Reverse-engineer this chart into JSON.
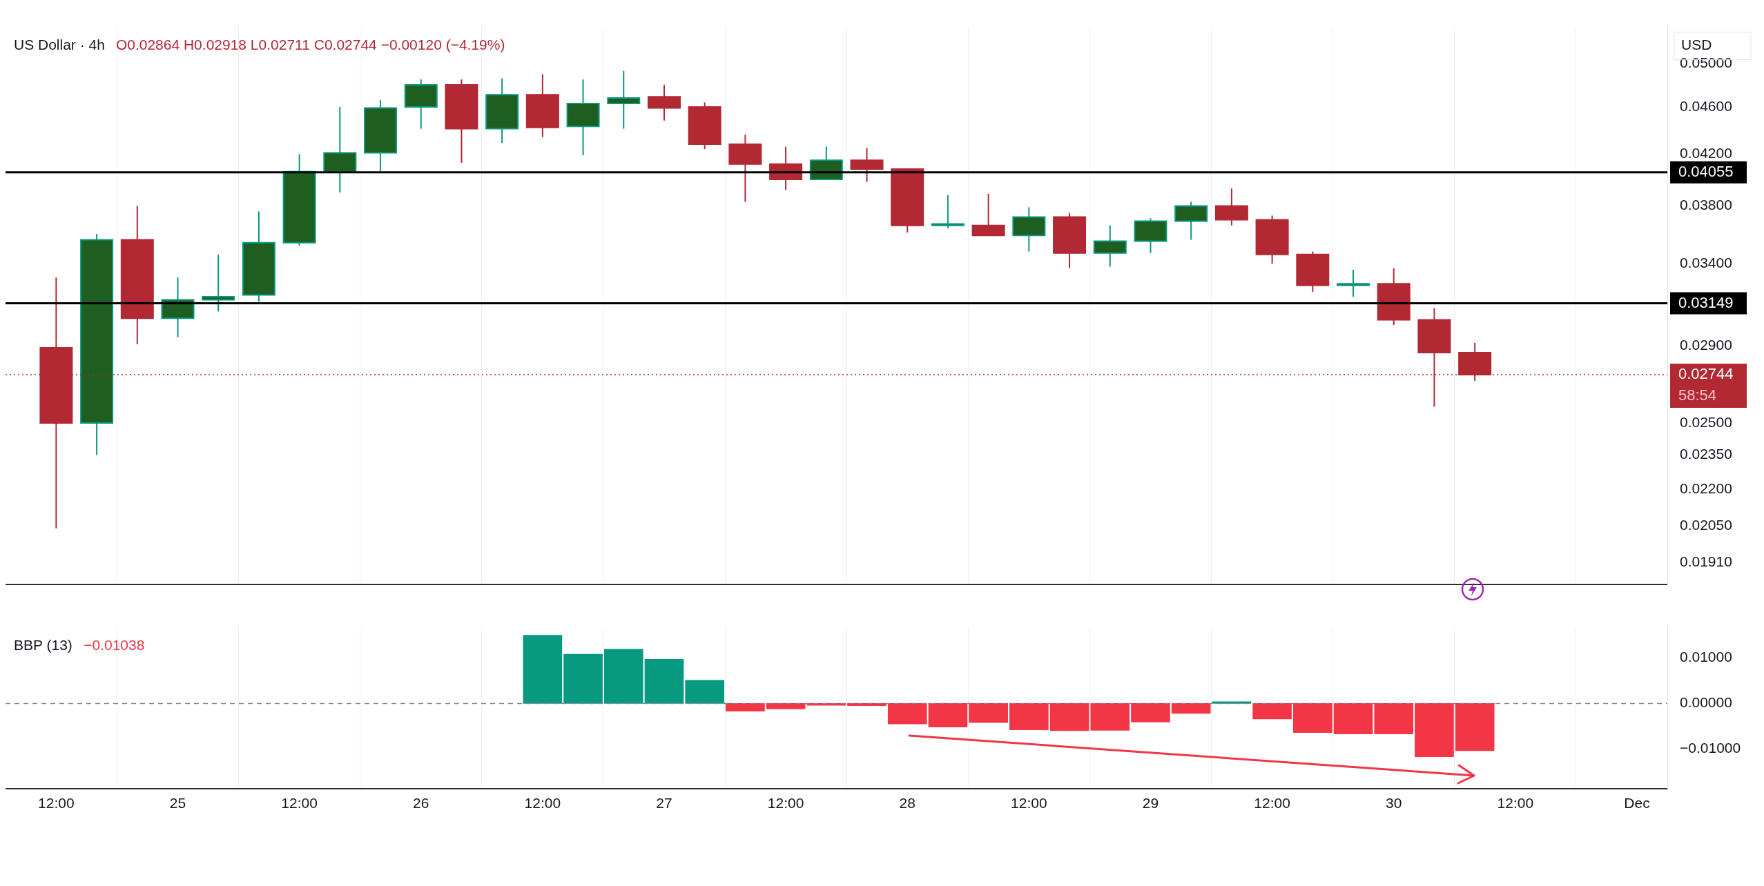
{
  "chart_data": [
    {
      "type": "candlestick",
      "title": "US Dollar · 4h",
      "subtitle": "O0.02864 H0.02918 L0.02711 C0.02744 −0.00120 (−4.19%)",
      "ylabel": "USD",
      "x": [
        "--11-24T12:00",
        "--11-24T16:00",
        "--11-24T20:00",
        "--11-25T00:00",
        "--11-25T04:00",
        "--11-25T08:00",
        "--11-25T12:00",
        "--11-25T16:00",
        "--11-25T20:00",
        "--11-26T00:00",
        "--11-26T04:00",
        "--11-26T08:00",
        "--11-26T12:00",
        "--11-26T16:00",
        "--11-26T20:00",
        "--11-27T00:00",
        "--11-27T04:00",
        "--11-27T08:00",
        "--11-27T12:00",
        "--11-27T16:00",
        "--11-27T20:00",
        "--11-28T00:00",
        "--11-28T04:00",
        "--11-28T08:00",
        "--11-28T12:00",
        "--11-28T16:00",
        "--11-28T20:00",
        "--11-29T00:00",
        "--11-29T04:00",
        "--11-29T08:00",
        "--11-29T12:00",
        "--11-29T16:00",
        "--11-29T20:00",
        "--11-30T00:00",
        "--11-30T04:00",
        "--11-30T08:00"
      ],
      "ohlc": [
        [
          0.0289,
          0.0331,
          0.0204,
          0.025
        ],
        [
          0.025,
          0.036,
          0.0235,
          0.0356
        ],
        [
          0.0356,
          0.038,
          0.0291,
          0.0306
        ],
        [
          0.0306,
          0.0331,
          0.0295,
          0.0317
        ],
        [
          0.0317,
          0.0346,
          0.031,
          0.0319
        ],
        [
          0.032,
          0.0376,
          0.0316,
          0.0354
        ],
        [
          0.0354,
          0.042,
          0.0352,
          0.0406
        ],
        [
          0.0406,
          0.046,
          0.039,
          0.0421
        ],
        [
          0.0421,
          0.0466,
          0.0406,
          0.0459
        ],
        [
          0.046,
          0.0485,
          0.0441,
          0.048
        ],
        [
          0.048,
          0.0485,
          0.0413,
          0.0441
        ],
        [
          0.0441,
          0.0486,
          0.0429,
          0.0471
        ],
        [
          0.0471,
          0.049,
          0.0434,
          0.0442
        ],
        [
          0.0443,
          0.0485,
          0.0419,
          0.0463
        ],
        [
          0.0463,
          0.0493,
          0.0441,
          0.0468
        ],
        [
          0.0469,
          0.048,
          0.0448,
          0.0459
        ],
        [
          0.046,
          0.0464,
          0.0424,
          0.0428
        ],
        [
          0.0428,
          0.0436,
          0.0383,
          0.0412
        ],
        [
          0.0412,
          0.0426,
          0.0392,
          0.04
        ],
        [
          0.04,
          0.0426,
          0.04,
          0.0415
        ],
        [
          0.0415,
          0.0425,
          0.0398,
          0.0408
        ],
        [
          0.0408,
          0.0408,
          0.0361,
          0.0366
        ],
        [
          0.0366,
          0.0388,
          0.0364,
          0.0367
        ],
        [
          0.0366,
          0.0389,
          0.0359,
          0.0359
        ],
        [
          0.0359,
          0.0379,
          0.0348,
          0.0372
        ],
        [
          0.0372,
          0.0375,
          0.0337,
          0.0347
        ],
        [
          0.0347,
          0.0366,
          0.0338,
          0.0355
        ],
        [
          0.0355,
          0.0371,
          0.0347,
          0.0369
        ],
        [
          0.0369,
          0.0383,
          0.0356,
          0.038
        ],
        [
          0.038,
          0.0393,
          0.0366,
          0.037
        ],
        [
          0.037,
          0.0373,
          0.034,
          0.0346
        ],
        [
          0.0346,
          0.0348,
          0.0322,
          0.0326
        ],
        [
          0.0326,
          0.0336,
          0.0319,
          0.0327
        ],
        [
          0.0327,
          0.0337,
          0.0302,
          0.0305
        ],
        [
          0.0305,
          0.0312,
          0.0258,
          0.02864
        ],
        [
          0.02864,
          0.02918,
          0.02711,
          0.02744
        ]
      ],
      "colors": [
        "#b22833",
        "#1e5e20",
        "#b22833",
        "#1e5e20",
        "#1e5e20",
        "#1e5e20",
        "#1e5e20",
        "#1e5e20",
        "#1e5e20",
        "#1e5e20",
        "#b22833",
        "#1e5e20",
        "#b22833",
        "#1e5e20",
        "#1e5e20",
        "#b22833",
        "#b22833",
        "#b22833",
        "#b22833",
        "#1e5e20",
        "#b22833",
        "#b22833",
        "#1e5e20",
        "#b22833",
        "#1e5e20",
        "#b22833",
        "#1e5e20",
        "#1e5e20",
        "#1e5e20",
        "#b22833",
        "#b22833",
        "#b22833",
        "#1e5e20",
        "#b22833",
        "#b22833",
        "#b22833"
      ],
      "xlim": [
        "--11-24T07:00",
        "--12-01T03:00"
      ],
      "xticks": [
        {
          "value": "--11-24T12:00",
          "label": null
        },
        {
          "value": "--11-25T00:00",
          "label": null
        },
        {
          "value": "--11-25T12:00",
          "label": null
        },
        {
          "value": "--11-26T00:00",
          "label": null
        },
        {
          "value": "--11-26T12:00",
          "label": null
        },
        {
          "value": "--11-27T00:00",
          "label": null
        },
        {
          "value": "--11-27T12:00",
          "label": null
        },
        {
          "value": "--11-28T00:00",
          "label": null
        },
        {
          "value": "--11-28T12:00",
          "label": null
        },
        {
          "value": "--11-29T00:00",
          "label": null
        },
        {
          "value": "--11-29T12:00",
          "label": null
        },
        {
          "value": "--11-30T00:00",
          "label": null
        },
        {
          "value": "--11-30T12:00",
          "label": null
        },
        {
          "value": "--12-01T00:00",
          "label": null
        }
      ],
      "ylim": [
        0.0183,
        0.0537
      ],
      "yticks": [
        {
          "value": 0.05,
          "label": "0.05000"
        },
        {
          "value": 0.046,
          "label": "0.04600"
        },
        {
          "value": 0.042,
          "label": "0.04200"
        },
        {
          "value": 0.038,
          "label": "0.03800"
        },
        {
          "value": 0.034,
          "label": "0.03400"
        },
        {
          "value": 0.029,
          "label": "0.02900"
        },
        {
          "value": 0.025,
          "label": "0.02500"
        },
        {
          "value": 0.0235,
          "label": "0.02350"
        },
        {
          "value": 0.022,
          "label": "0.02200"
        },
        {
          "value": 0.0205,
          "label": "0.02050"
        },
        {
          "value": 0.0191,
          "label": "0.01910"
        }
      ],
      "log": true,
      "grid": "x",
      "tick_labels": "y",
      "ref_lines": [
        {
          "axis": "y",
          "value": 0.04055,
          "label": "0.04055",
          "color": "#000000",
          "line_style": "solid"
        },
        {
          "axis": "y",
          "value": 0.03149,
          "label": "0.03149",
          "color": "#000000",
          "line_style": "solid"
        },
        {
          "axis": "y",
          "value": 0.02744,
          "label": "0.02744",
          "color": "#b22833",
          "line_style": "dotted"
        }
      ],
      "annotations": [
        "58:54"
      ]
    },
    {
      "type": "bar",
      "title": "BBP (13)",
      "subtitle": "−0.01038",
      "x": [
        "--11-26T12:00",
        "--11-26T16:00",
        "--11-26T20:00",
        "--11-27T00:00",
        "--11-27T04:00",
        "--11-27T08:00",
        "--11-27T12:00",
        "--11-27T16:00",
        "--11-27T20:00",
        "--11-28T00:00",
        "--11-28T04:00",
        "--11-28T08:00",
        "--11-28T12:00",
        "--11-28T16:00",
        "--11-28T20:00",
        "--11-29T00:00",
        "--11-29T04:00",
        "--11-29T08:00",
        "--11-29T12:00",
        "--11-29T16:00",
        "--11-29T20:00",
        "--11-30T00:00",
        "--11-30T04:00",
        "--11-30T08:00"
      ],
      "values": [
        0.015,
        0.0108,
        0.0119,
        0.0097,
        0.0051,
        -0.0017,
        -0.0012,
        -0.0004,
        -0.0005,
        -0.0045,
        -0.0052,
        -0.0042,
        -0.0058,
        -0.006,
        -0.0059,
        -0.0041,
        -0.0022,
        0.0004,
        -0.0034,
        -0.0064,
        -0.0067,
        -0.0067,
        -0.0117,
        -0.01038
      ],
      "colors": [
        "#089981",
        "#089981",
        "#089981",
        "#089981",
        "#089981",
        "#f23645",
        "#f23645",
        "#f23645",
        "#f23645",
        "#f23645",
        "#f23645",
        "#f23645",
        "#f23645",
        "#f23645",
        "#f23645",
        "#f23645",
        "#f23645",
        "#089981",
        "#f23645",
        "#f23645",
        "#f23645",
        "#f23645",
        "#f23645",
        "#f23645"
      ],
      "xlim": [
        "--11-24T07:00",
        "--12-01T03:00"
      ],
      "xticks": [
        {
          "value": "--11-24T12:00",
          "label": "12:00"
        },
        {
          "value": "--11-25T00:00",
          "label": "25"
        },
        {
          "value": "--11-25T12:00",
          "label": "12:00"
        },
        {
          "value": "--11-26T00:00",
          "label": "26"
        },
        {
          "value": "--11-26T12:00",
          "label": "12:00"
        },
        {
          "value": "--11-27T00:00",
          "label": "27"
        },
        {
          "value": "--11-27T12:00",
          "label": "12:00"
        },
        {
          "value": "--11-28T00:00",
          "label": "28"
        },
        {
          "value": "--11-28T12:00",
          "label": "12:00"
        },
        {
          "value": "--11-29T00:00",
          "label": "29"
        },
        {
          "value": "--11-29T12:00",
          "label": "12:00"
        },
        {
          "value": "--11-30T00:00",
          "label": "30"
        },
        {
          "value": "--11-30T12:00",
          "label": "12:00"
        },
        {
          "value": "--12-01T00:00",
          "label": "Dec"
        }
      ],
      "ylim": [
        -0.0187,
        0.0168
      ],
      "yticks": [
        {
          "value": 0.01,
          "label": "0.01000"
        },
        {
          "value": 0,
          "label": "0.00000"
        },
        {
          "value": -0.01,
          "label": "−0.01000"
        }
      ],
      "grid": "x",
      "ref_lines": [
        {
          "axis": "y",
          "value": 0,
          "color": "#888888",
          "line_style": "dashed"
        }
      ]
    }
  ]
}
